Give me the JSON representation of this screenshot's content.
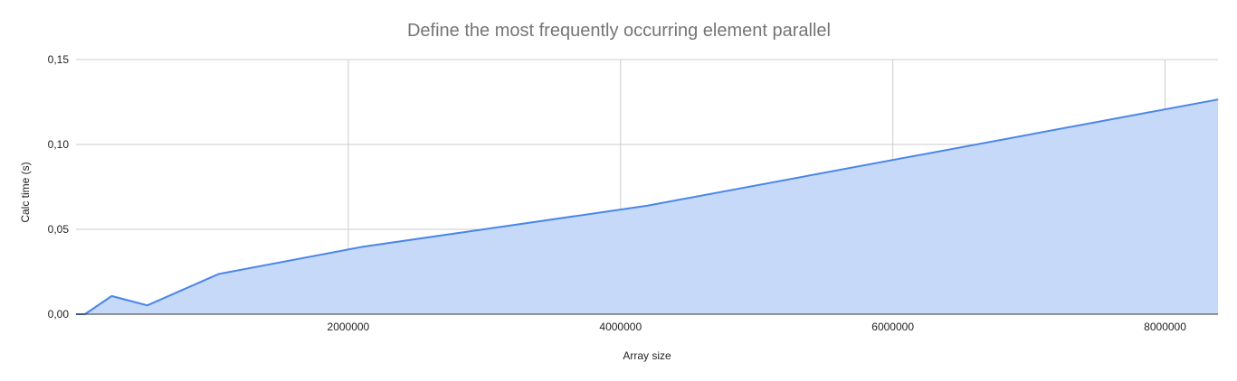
{
  "chart_data": {
    "type": "area",
    "title": "Define the most frequently occurring element parallel",
    "xlabel": "Array size",
    "ylabel": "Calc time (s)",
    "x_ticks": [
      {
        "value": 2000000,
        "label": "2000000"
      },
      {
        "value": 4000000,
        "label": "4000000"
      },
      {
        "value": 6000000,
        "label": "6000000"
      },
      {
        "value": 8000000,
        "label": "8000000"
      }
    ],
    "y_ticks": [
      {
        "value": 0,
        "label": "0,00"
      },
      {
        "value": 0.05,
        "label": "0,05"
      },
      {
        "value": 0.1,
        "label": "0,10"
      },
      {
        "value": 0.15,
        "label": "0,15"
      }
    ],
    "xlim": [
      0,
      8388608
    ],
    "ylim": [
      0,
      0.15
    ],
    "grid": true,
    "legend": "none",
    "series": [
      {
        "color": "#4a86e8",
        "fill": "#c6d9f8",
        "points": [
          {
            "x": 0,
            "y": 0.0
          },
          {
            "x": 65536,
            "y": 0.0
          },
          {
            "x": 262144,
            "y": 0.0107
          },
          {
            "x": 524288,
            "y": 0.0052
          },
          {
            "x": 1048576,
            "y": 0.0237
          },
          {
            "x": 2097152,
            "y": 0.0396
          },
          {
            "x": 4194304,
            "y": 0.0639
          },
          {
            "x": 8388608,
            "y": 0.1265
          }
        ]
      }
    ]
  }
}
